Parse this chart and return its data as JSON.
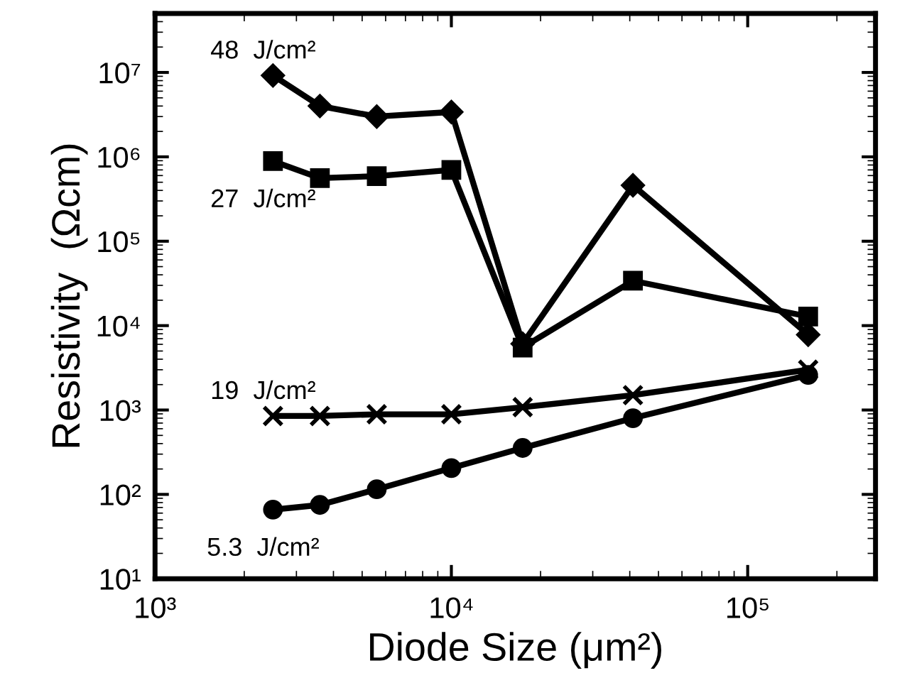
{
  "chart_data": {
    "type": "line",
    "xlabel": "Diode Size (μm²)",
    "ylabel": "Resistivity  (Ωcm)",
    "log": "xy",
    "grid": false,
    "x": [
      2500,
      3600,
      5600,
      10000,
      17400,
      41000,
      160000
    ],
    "xlim": [
      1000,
      270000
    ],
    "ylim": [
      10,
      50000000
    ],
    "xticks": [
      {
        "value": 1000,
        "label": "10³"
      },
      {
        "value": 10000,
        "label": "10⁴"
      },
      {
        "value": 100000,
        "label": "10⁵"
      }
    ],
    "yticks": [
      {
        "value": 10,
        "label": "10¹"
      },
      {
        "value": 100,
        "label": "10²"
      },
      {
        "value": 1000,
        "label": "10³"
      },
      {
        "value": 10000,
        "label": "10⁴"
      },
      {
        "value": 100000,
        "label": "10⁵"
      },
      {
        "value": 1000000,
        "label": "10⁶"
      },
      {
        "value": 10000000,
        "label": "10⁷"
      }
    ],
    "series": [
      {
        "name": "48  J/cm²",
        "color": "#000000",
        "marker": "diamond",
        "values": [
          9200000,
          4000000,
          3000000,
          3400000,
          6100,
          460000,
          7800
        ]
      },
      {
        "name": "27  J/cm²",
        "color": "#000000",
        "marker": "square",
        "values": [
          890000,
          560000,
          590000,
          700000,
          5500,
          34000,
          12800
        ]
      },
      {
        "name": "19  J/cm²",
        "color": "#000000",
        "marker": "cross",
        "values": [
          850,
          850,
          890,
          890,
          1080,
          1500,
          3000
        ]
      },
      {
        "name": "5.3  J/cm²",
        "color": "#000000",
        "marker": "circle",
        "values": [
          66,
          75,
          115,
          205,
          355,
          800,
          2600
        ]
      }
    ]
  }
}
